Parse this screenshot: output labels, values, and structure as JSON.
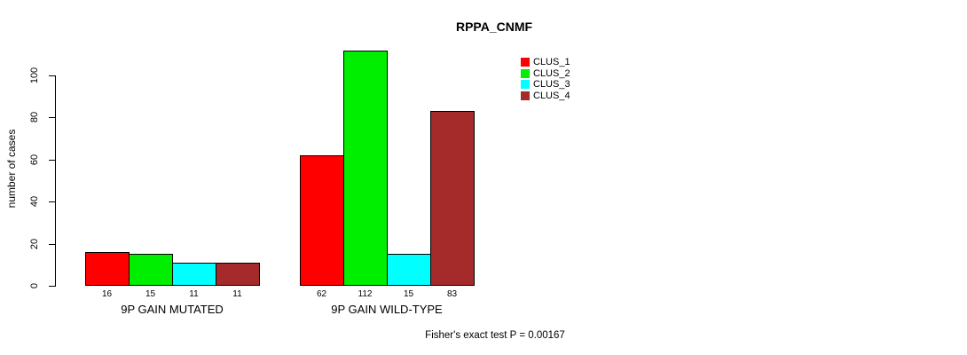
{
  "chart_data": {
    "type": "bar",
    "title": "RPPA_CNMF",
    "xlabel": "",
    "ylabel": "number of cases",
    "ylim": [
      0,
      112
    ],
    "yticks": [
      0,
      20,
      40,
      60,
      80,
      100
    ],
    "grid": false,
    "legend_position": "top-right-outside",
    "bar_value_labels": true,
    "categories": [
      "9P GAIN MUTATED",
      "9P GAIN WILD-TYPE"
    ],
    "series": [
      {
        "name": "CLUS_1",
        "color": "#ff0000",
        "values": [
          16,
          62
        ]
      },
      {
        "name": "CLUS_2",
        "color": "#00ee00",
        "values": [
          15,
          112
        ]
      },
      {
        "name": "CLUS_3",
        "color": "#00ffff",
        "values": [
          11,
          15
        ]
      },
      {
        "name": "CLUS_4",
        "color": "#a52a2a",
        "values": [
          11,
          83
        ]
      }
    ],
    "annotation": "Fisher's exact test P = 0.00167"
  }
}
